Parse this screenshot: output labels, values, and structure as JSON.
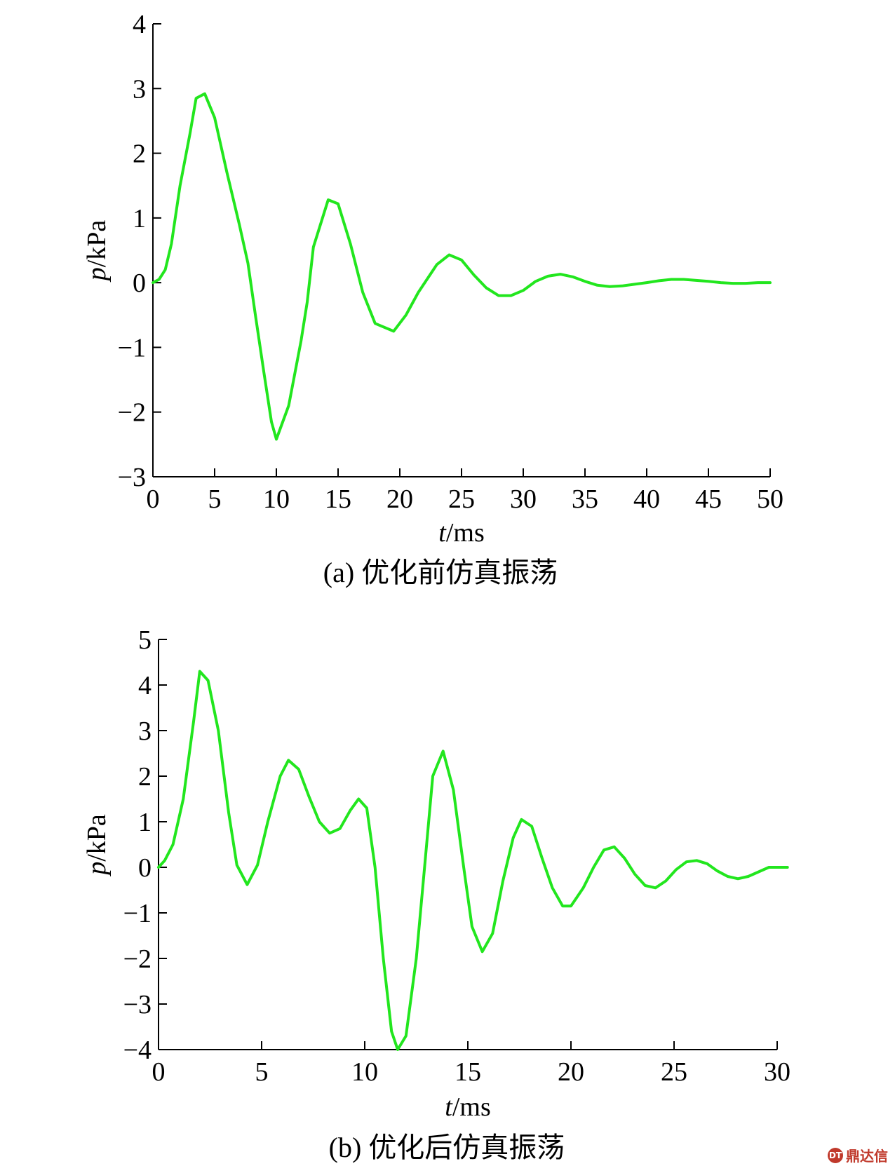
{
  "chart_data": [
    {
      "type": "line",
      "ylabel_italic": "p",
      "ylabel_unit": "/kPa",
      "xlabel_italic": "t",
      "xlabel_unit": "/ms",
      "caption": "(a) 优化前仿真振荡",
      "xlim": [
        0,
        50
      ],
      "ylim": [
        -3,
        4
      ],
      "xticks": [
        0,
        5,
        10,
        15,
        20,
        25,
        30,
        35,
        40,
        45,
        50
      ],
      "xtick_labels": [
        "0",
        "5",
        "10",
        "15",
        "20",
        "25",
        "30",
        "35",
        "40",
        "45",
        "50"
      ],
      "yticks": [
        4,
        3,
        2,
        1,
        0,
        -1,
        -2,
        -3
      ],
      "ytick_labels": [
        "4",
        "3",
        "2",
        "1",
        "0",
        "−1",
        "−2",
        "−3"
      ],
      "grid": false,
      "line_color": "#22e61e",
      "series": [
        {
          "x": [
            0,
            0.5,
            1,
            1.5,
            2.2,
            3,
            3.5,
            4.2,
            5,
            6,
            7,
            7.7,
            8.3,
            9,
            9.6,
            10,
            11,
            12,
            12.5,
            13,
            14.2,
            15,
            16,
            17,
            18,
            19.5,
            20.5,
            21.5,
            23,
            24,
            25,
            26,
            27,
            28,
            29,
            30,
            31,
            32,
            33,
            34,
            35,
            36,
            37,
            38,
            40,
            41,
            42,
            43,
            45,
            46,
            47,
            48,
            49,
            50
          ],
          "y": [
            0,
            0.05,
            0.2,
            0.6,
            1.5,
            2.3,
            2.85,
            2.92,
            2.55,
            1.7,
            0.9,
            0.3,
            -0.5,
            -1.4,
            -2.15,
            -2.42,
            -1.9,
            -0.9,
            -0.3,
            0.55,
            1.28,
            1.22,
            0.6,
            -0.15,
            -0.63,
            -0.75,
            -0.5,
            -0.15,
            0.28,
            0.43,
            0.35,
            0.12,
            -0.08,
            -0.2,
            -0.2,
            -0.12,
            0.02,
            0.1,
            0.13,
            0.09,
            0.02,
            -0.04,
            -0.06,
            -0.05,
            0,
            0.03,
            0.05,
            0.05,
            0.02,
            0,
            -0.01,
            -0.01,
            0,
            0
          ]
        }
      ]
    },
    {
      "type": "line",
      "ylabel_italic": "p",
      "ylabel_unit": "/kPa",
      "xlabel_italic": "t",
      "xlabel_unit": "/ms",
      "caption": "(b) 优化后仿真振荡",
      "xlim": [
        0,
        30
      ],
      "ylim": [
        -4,
        5
      ],
      "xticks": [
        0,
        5,
        10,
        15,
        20,
        25,
        30
      ],
      "xtick_labels": [
        "0",
        "5",
        "10",
        "15",
        "20",
        "25",
        "30"
      ],
      "yticks": [
        5,
        4,
        3,
        2,
        1,
        0,
        -1,
        -2,
        -3,
        -4
      ],
      "ytick_labels": [
        "5",
        "4",
        "3",
        "2",
        "1",
        "0",
        "−1",
        "−2",
        "−3",
        "−4"
      ],
      "grid": false,
      "line_color": "#22e61e",
      "series": [
        {
          "x": [
            0,
            0.3,
            0.7,
            1.2,
            1.7,
            2.0,
            2.4,
            2.9,
            3.4,
            3.8,
            4.3,
            4.8,
            5.3,
            5.9,
            6.3,
            6.8,
            7.3,
            7.8,
            8.3,
            8.8,
            9.3,
            9.7,
            10.1,
            10.5,
            10.9,
            11.3,
            11.6,
            12.0,
            12.5,
            12.9,
            13.3,
            13.8,
            14.3,
            14.8,
            15.2,
            15.7,
            16.2,
            16.7,
            17.2,
            17.6,
            18.1,
            18.6,
            19.1,
            19.6,
            20.0,
            20.6,
            21.1,
            21.6,
            22.1,
            22.6,
            23.1,
            23.6,
            24.1,
            24.6,
            25.1,
            25.6,
            26.1,
            26.6,
            27.1,
            27.6,
            28.1,
            28.6,
            29.1,
            29.6,
            30.0,
            30.5
          ],
          "y": [
            0,
            0.15,
            0.5,
            1.5,
            3.2,
            4.3,
            4.1,
            3.0,
            1.2,
            0.05,
            -0.38,
            0.05,
            1.0,
            2.0,
            2.35,
            2.15,
            1.55,
            1.0,
            0.75,
            0.85,
            1.25,
            1.5,
            1.3,
            0.0,
            -2.0,
            -3.6,
            -4.0,
            -3.7,
            -2.0,
            0.0,
            2.0,
            2.55,
            1.7,
            0.0,
            -1.3,
            -1.85,
            -1.45,
            -0.3,
            0.65,
            1.05,
            0.9,
            0.2,
            -0.45,
            -0.85,
            -0.85,
            -0.45,
            0.0,
            0.38,
            0.45,
            0.2,
            -0.15,
            -0.4,
            -0.45,
            -0.3,
            -0.05,
            0.12,
            0.15,
            0.08,
            -0.08,
            -0.2,
            -0.25,
            -0.2,
            -0.1,
            0.0,
            0.0,
            0.0
          ]
        }
      ]
    }
  ],
  "watermark": {
    "logo_text": "DT",
    "label": "鼎达信"
  }
}
